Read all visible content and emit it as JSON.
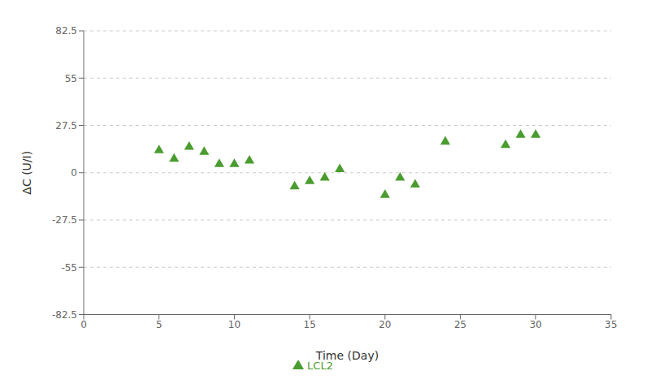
{
  "chart_data": {
    "type": "scatter",
    "x_label": "Time (Day)",
    "y_label": "ΔC (U/I)",
    "x": [
      5,
      6,
      7,
      8,
      9,
      10,
      11,
      14,
      15,
      16,
      17,
      20,
      21,
      22,
      24,
      28,
      29,
      30
    ],
    "series": [
      {
        "name": "LCL2",
        "color": "#4a9c2f",
        "marker": "triangle",
        "values": [
          13,
          8,
          15,
          12,
          5,
          5,
          7,
          -8,
          -5,
          -3,
          2,
          -13,
          -3,
          -7,
          18,
          16,
          22,
          22
        ]
      }
    ],
    "xlim": [
      0,
      35
    ],
    "ylim": [
      -82.5,
      82.5
    ],
    "xticks": [
      0,
      5,
      10,
      15,
      20,
      25,
      30,
      35
    ],
    "yticks": [
      -82.5,
      -55,
      -27.5,
      0,
      27.5,
      55,
      82.5
    ],
    "grid": true,
    "legend": "bottom"
  }
}
